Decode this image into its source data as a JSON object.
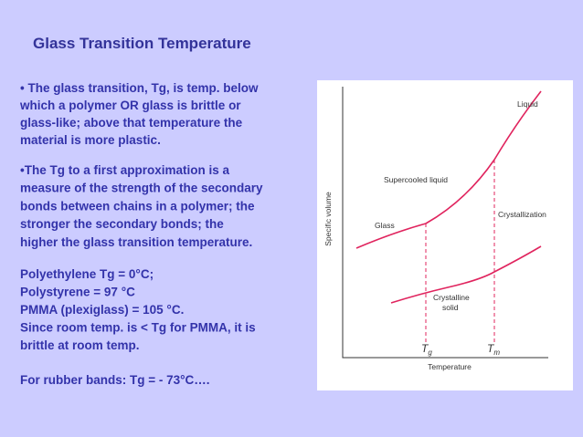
{
  "title": "Glass Transition Temperature",
  "paragraphs": [
    [
      "• The glass transition, Tg, is temp. below",
      "which a polymer OR glass is brittle or",
      "glass-like; above that temperature the",
      "material is more plastic."
    ],
    [
      "•The Tg to a first approximation is a",
      "measure of the strength of the secondary",
      "bonds between chains in a polymer; the",
      "stronger the secondary bonds; the",
      "higher the glass transition temperature."
    ],
    [
      "Polyethylene Tg = 0°C;",
      "Polystyrene = 97 °C",
      "PMMA (plexiglass) = 105 °C.",
      "Since room temp. is < Tg for PMMA, it is",
      "brittle at room temp."
    ],
    [
      "For rubber bands: Tg = - 73°C…."
    ]
  ],
  "diagram": {
    "y_axis_label": "Specific volume",
    "x_axis_label": "Temperature",
    "tg": {
      "main": "T",
      "sub": "g"
    },
    "tm": {
      "main": "T",
      "sub": "m"
    },
    "labels": [
      "Liquid",
      "Supercooled liquid",
      "Glass",
      "Crystallization",
      "Crystalline",
      "solid"
    ]
  }
}
